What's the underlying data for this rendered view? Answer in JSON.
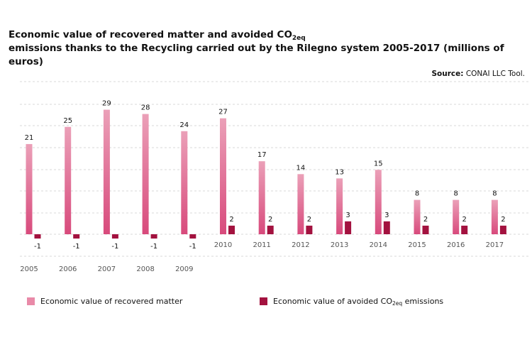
{
  "title": {
    "line1_pre": "Economic value of recovered matter and avoided CO",
    "line1_sub": "2eq",
    "line2": "emissions thanks to the Recycling carried out by the Rilegno system 2005-2017 (millions of euros)"
  },
  "source": {
    "label": "Source:",
    "text": "CONAI LLC Tool."
  },
  "legend": [
    {
      "label": "Economic value of recovered matter",
      "color": "#e98aa8"
    },
    {
      "label_pre": "Economic value of avoided CO",
      "label_sub": "2eq",
      "label_post": " emissions",
      "color": "#a3123f"
    }
  ],
  "chart_data": {
    "type": "bar",
    "title": "Economic value of recovered matter and avoided CO2eq emissions thanks to the Recycling carried out by the Rilegno system 2005-2017 (millions of euros)",
    "categories": [
      "2005",
      "2006",
      "2007",
      "2008",
      "2009",
      "2010",
      "2011",
      "2012",
      "2013",
      "2014",
      "2015",
      "2016",
      "2017"
    ],
    "series": [
      {
        "name": "Economic value of recovered matter",
        "color_top": "#eba0b8",
        "color_bottom": "#d84a7c",
        "values": [
          21,
          25,
          29,
          28,
          24,
          27,
          17,
          14,
          13,
          15,
          8,
          8,
          8
        ]
      },
      {
        "name": "Economic value of avoided CO2eq emissions",
        "color": "#a3123f",
        "values": [
          -1,
          -1,
          -1,
          -1,
          -1,
          2,
          2,
          2,
          3,
          3,
          2,
          2,
          2
        ]
      }
    ],
    "ylim": [
      -4,
      30
    ],
    "grid": true,
    "legend_position": "bottom"
  }
}
